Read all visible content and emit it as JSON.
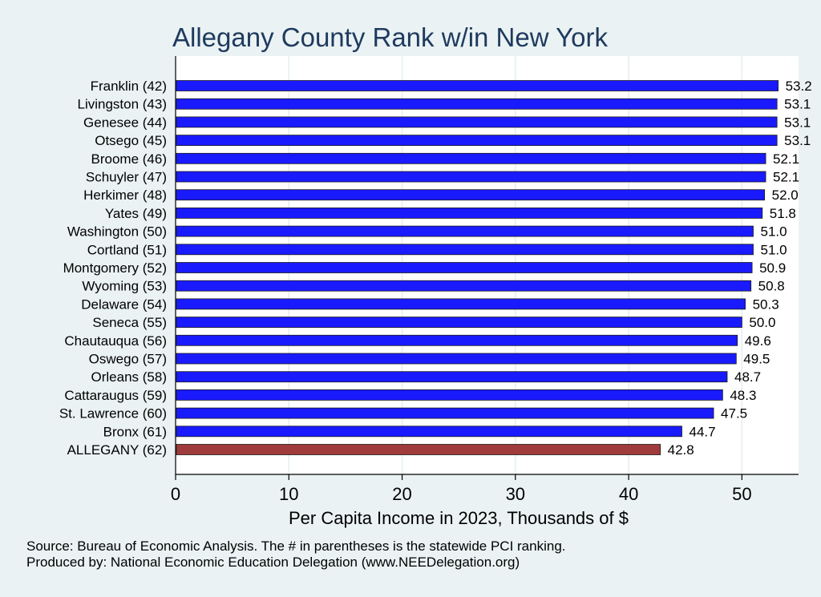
{
  "chart_data": {
    "type": "bar",
    "orientation": "horizontal",
    "title": "Allegany County Rank w/in New York",
    "xlabel": "Per Capita Income in 2023, Thousands of $",
    "ylabel": "",
    "xlim": [
      0,
      55
    ],
    "xticks": [
      0,
      10,
      20,
      30,
      40,
      50
    ],
    "grid": true,
    "categories": [
      "Franklin (42)",
      "Livingston (43)",
      "Genesee (44)",
      "Otsego (45)",
      "Broome (46)",
      "Schuyler (47)",
      "Herkimer (48)",
      "Yates (49)",
      "Washington (50)",
      "Cortland (51)",
      "Montgomery (52)",
      "Wyoming (53)",
      "Delaware (54)",
      "Seneca (55)",
      "Chautauqua (56)",
      "Oswego (57)",
      "Orleans (58)",
      "Cattaraugus (59)",
      "St. Lawrence (60)",
      "Bronx (61)",
      "ALLEGANY (62)"
    ],
    "values": [
      53.2,
      53.1,
      53.1,
      53.1,
      52.1,
      52.1,
      52.0,
      51.8,
      51.0,
      51.0,
      50.9,
      50.8,
      50.3,
      50.0,
      49.6,
      49.5,
      48.7,
      48.3,
      47.5,
      44.7,
      42.8
    ],
    "value_labels": [
      "53.2",
      "53.1",
      "53.1",
      "53.1",
      "52.1",
      "52.1",
      "52.0",
      "51.8",
      "51.0",
      "51.0",
      "50.9",
      "50.8",
      "50.3",
      "50.0",
      "49.6",
      "49.5",
      "48.7",
      "48.3",
      "47.5",
      "44.7",
      "42.8"
    ],
    "colors": {
      "default": "#1a1aff",
      "highlight": "#a03b3b"
    },
    "highlight_index": 20
  },
  "notes": {
    "source": "Source: Bureau of Economic Analysis. The # in parentheses is the statewide PCI ranking.",
    "produced": "Produced by: National Economic Education Delegation (www.NEEDelegation.org)"
  }
}
